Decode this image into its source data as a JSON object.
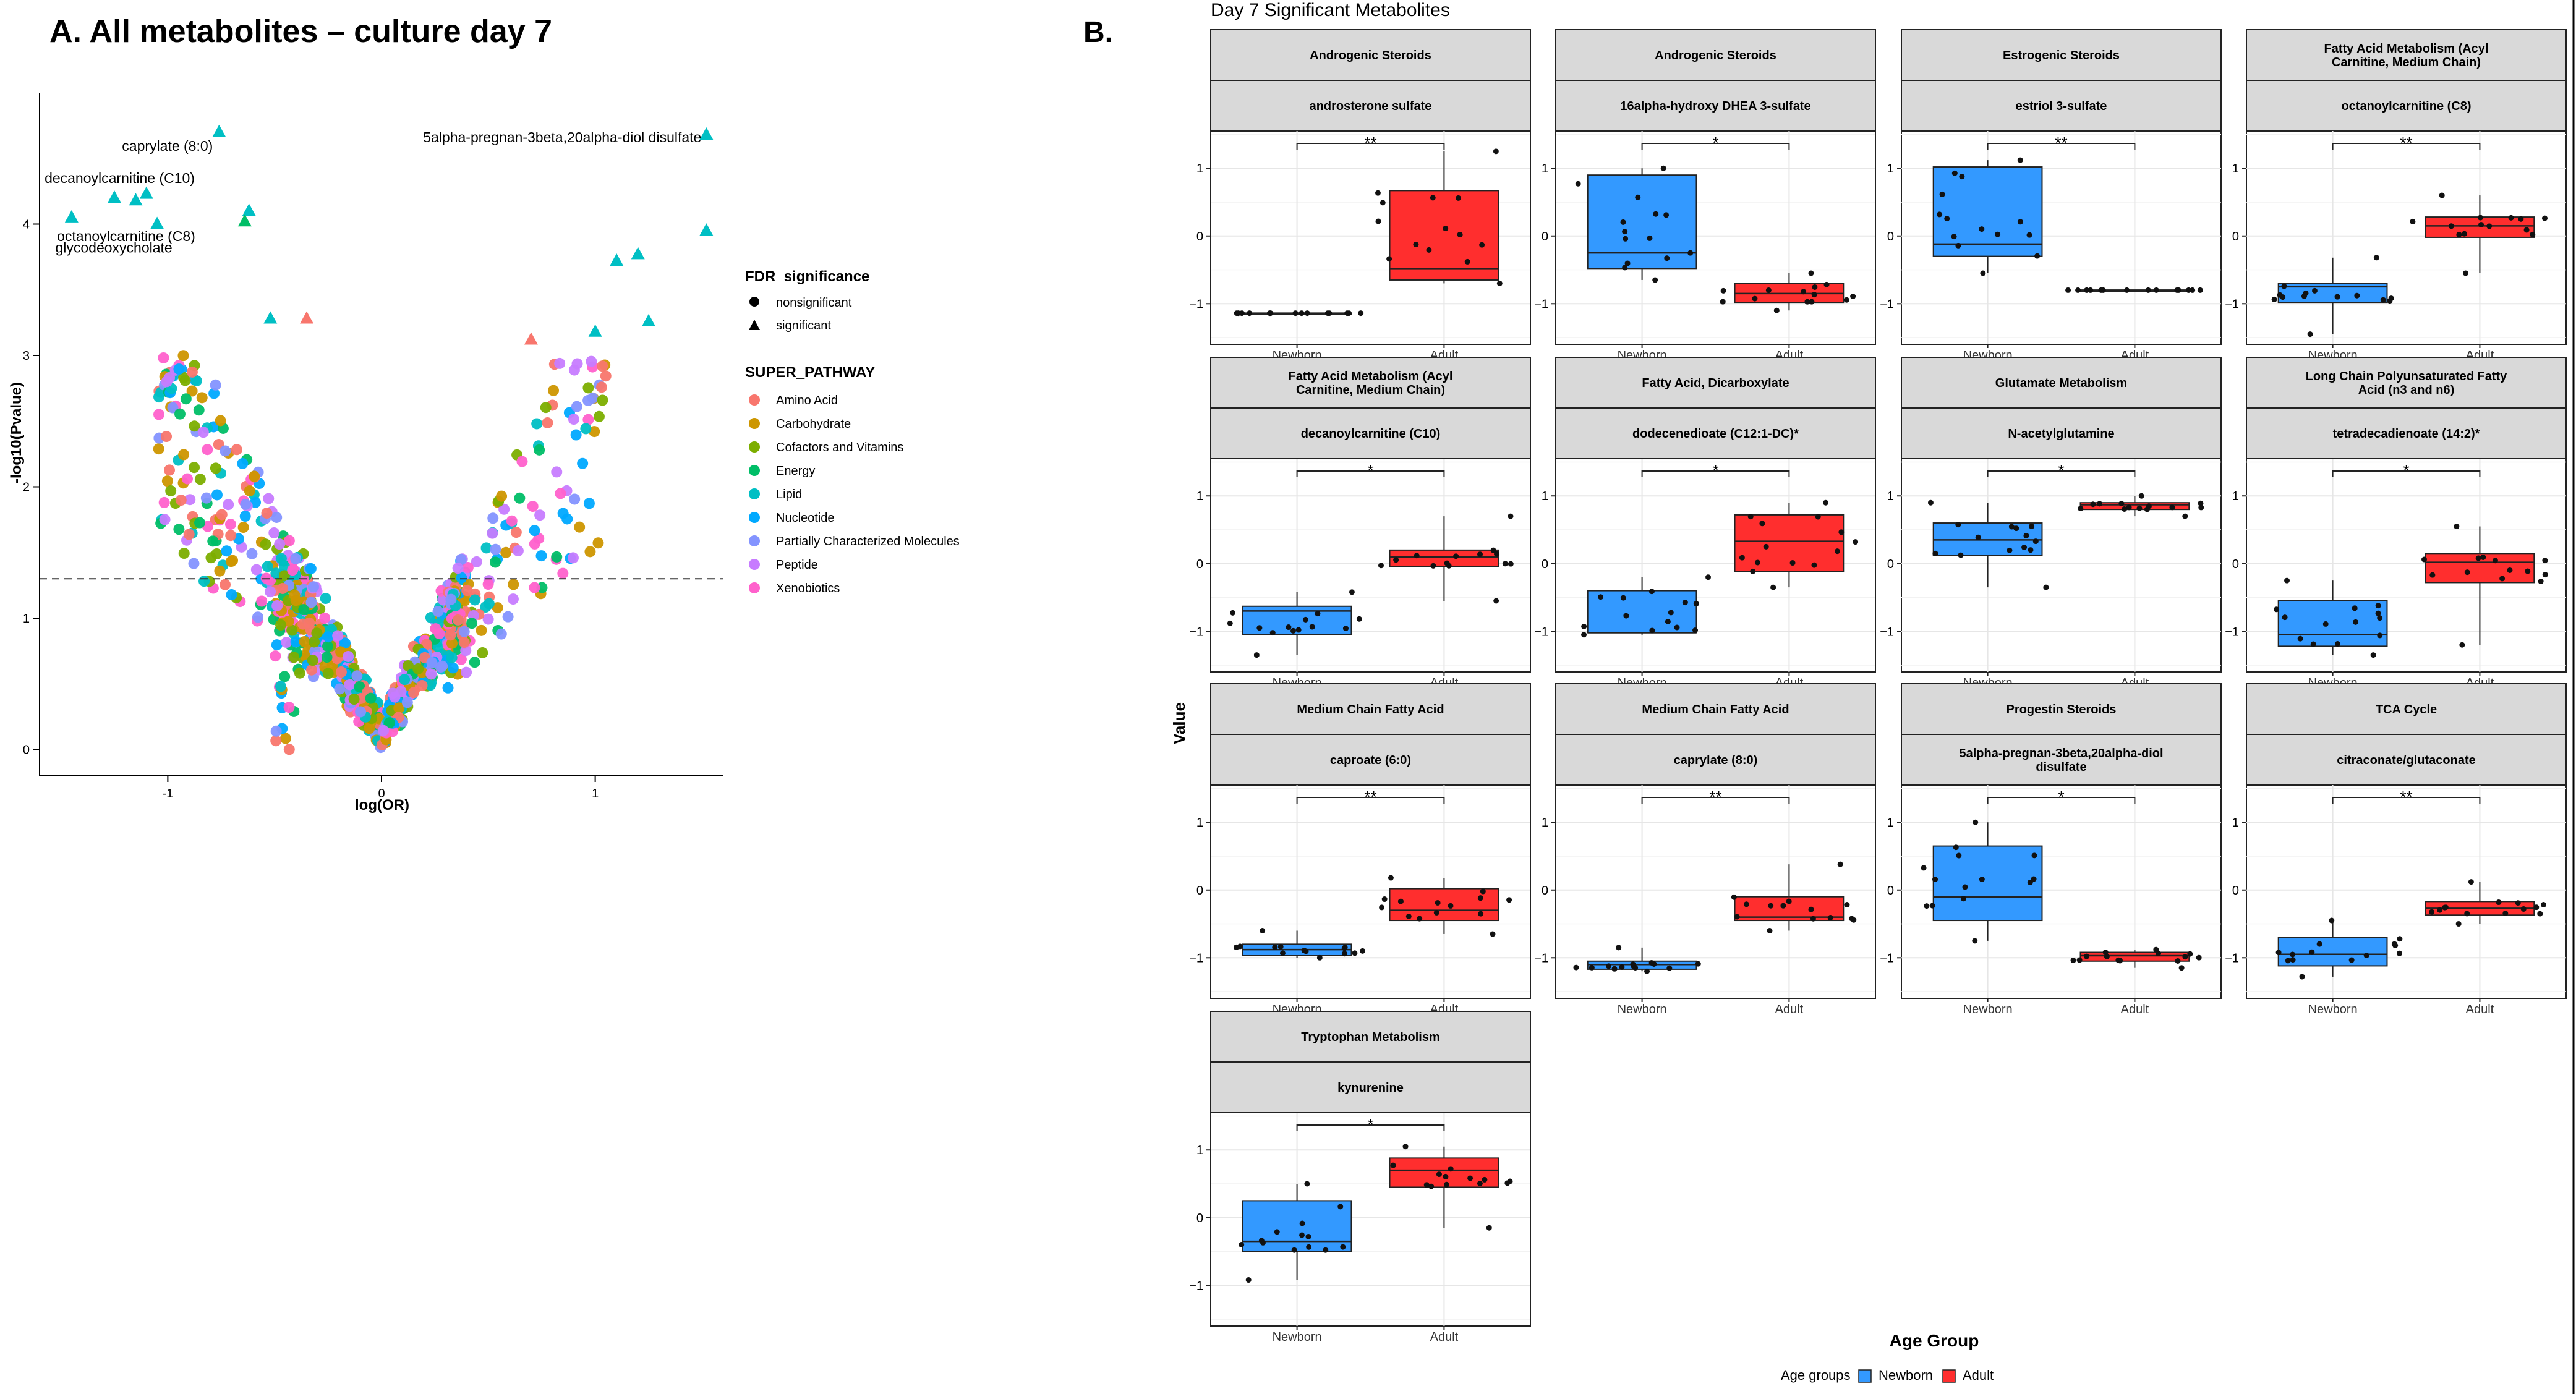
{
  "figure": {
    "panel_a_label": "A. All metabolites – culture day 7",
    "panel_b_label": "B.",
    "panel_b_title": "Day 7 Significant Metabolites"
  },
  "legend_a": {
    "fdr_title": "FDR_significance",
    "fdr_items": [
      "nonsignificant",
      "significant"
    ],
    "pathway_title": "SUPER_PATHWAY",
    "pathway_items": [
      {
        "name": "Amino Acid",
        "color": "#F8766D"
      },
      {
        "name": "Carbohydrate",
        "color": "#CD9600"
      },
      {
        "name": "Cofactors and Vitamins",
        "color": "#7CAE00"
      },
      {
        "name": "Energy",
        "color": "#00BE67"
      },
      {
        "name": "Lipid",
        "color": "#00BFC4"
      },
      {
        "name": "Nucleotide",
        "color": "#00A9FF"
      },
      {
        "name": "Partially Characterized Molecules",
        "color": "#8494FF"
      },
      {
        "name": "Peptide",
        "color": "#C77CFF"
      },
      {
        "name": "Xenobiotics",
        "color": "#FF61CC"
      }
    ]
  },
  "legend_b": {
    "title": "Age groups",
    "items": [
      {
        "name": "Newborn",
        "color": "#3399FF"
      },
      {
        "name": "Adult",
        "color": "#FF2E2E"
      }
    ],
    "xlabel": "Age Group",
    "ylabel": "Value"
  },
  "chart_data": [
    {
      "type": "scatter",
      "title": "A. All metabolites – culture day 7",
      "xlabel": "log(OR)",
      "ylabel": "-log10(Pvalue)",
      "xlim": [
        -1.6,
        1.6
      ],
      "ylim": [
        -0.2,
        5.0
      ],
      "xticks": [
        -1,
        0,
        1
      ],
      "yticks": [
        0,
        1,
        2,
        3,
        4
      ],
      "threshold_y": 1.3,
      "significant_points": [
        {
          "x": -0.76,
          "y": 4.7,
          "pathway": "Lipid",
          "label": "caprylate (8:0)"
        },
        {
          "x": 1.52,
          "y": 4.68,
          "pathway": "Lipid",
          "label": "5alpha-pregnan-3beta,20alpha-diol disulfate"
        },
        {
          "x": -1.25,
          "y": 4.2,
          "pathway": "Lipid",
          "label": "decanoylcarnitine (C10)"
        },
        {
          "x": -1.45,
          "y": 4.05,
          "pathway": "Lipid",
          "label": "octanoylcarnitine (C8)"
        },
        {
          "x": -1.05,
          "y": 4.0,
          "pathway": "Lipid",
          "label": "glycodeoxycholate"
        },
        {
          "x": -1.15,
          "y": 4.18,
          "pathway": "Lipid",
          "label": ""
        },
        {
          "x": -1.1,
          "y": 4.23,
          "pathway": "Lipid",
          "label": ""
        },
        {
          "x": -0.62,
          "y": 4.1,
          "pathway": "Lipid",
          "label": ""
        },
        {
          "x": -0.64,
          "y": 4.02,
          "pathway": "Energy",
          "label": ""
        },
        {
          "x": -0.52,
          "y": 3.28,
          "pathway": "Lipid",
          "label": ""
        },
        {
          "x": -0.35,
          "y": 3.28,
          "pathway": "Amino Acid",
          "label": ""
        },
        {
          "x": 0.7,
          "y": 3.12,
          "pathway": "Amino Acid",
          "label": ""
        },
        {
          "x": 1.0,
          "y": 3.18,
          "pathway": "Lipid",
          "label": ""
        },
        {
          "x": 1.1,
          "y": 3.72,
          "pathway": "Lipid",
          "label": ""
        },
        {
          "x": 1.2,
          "y": 3.77,
          "pathway": "Lipid",
          "label": ""
        },
        {
          "x": 1.52,
          "y": 3.95,
          "pathway": "Lipid",
          "label": ""
        },
        {
          "x": 1.25,
          "y": 3.26,
          "pathway": "Lipid",
          "label": ""
        }
      ]
    },
    {
      "type": "box",
      "title": "Day 7 Significant Metabolites",
      "xlabel": "Age Group",
      "ylabel": "Value",
      "categories": [
        "Newborn",
        "Adult"
      ],
      "ylim": [
        -1.6,
        1.55
      ],
      "yticks": [
        -1,
        0,
        1
      ],
      "panels": [
        {
          "pathway": "Androgenic Steroids",
          "metabolite": "androsterone sulfate",
          "sig": "**",
          "newborn": {
            "q1": -1.14,
            "median": -1.14,
            "q3": -1.14,
            "min": -1.14,
            "max": -1.14
          },
          "adult": {
            "q1": -0.65,
            "median": -0.48,
            "q3": 0.67,
            "min": -0.7,
            "max": 1.25
          }
        },
        {
          "pathway": "Androgenic Steroids",
          "metabolite": "16alpha-hydroxy DHEA 3-sulfate",
          "sig": "*",
          "newborn": {
            "q1": -0.48,
            "median": -0.25,
            "q3": 0.9,
            "min": -0.65,
            "max": 1.0
          },
          "adult": {
            "q1": -0.98,
            "median": -0.85,
            "q3": -0.7,
            "min": -1.1,
            "max": -0.55
          }
        },
        {
          "pathway": "Estrogenic Steroids",
          "metabolite": "estriol 3-sulfate",
          "sig": "**",
          "newborn": {
            "q1": -0.3,
            "median": -0.12,
            "q3": 1.02,
            "min": -0.55,
            "max": 1.12
          },
          "adult": {
            "q1": -0.8,
            "median": -0.8,
            "q3": -0.8,
            "min": -0.8,
            "max": -0.8
          }
        },
        {
          "pathway": "Fatty Acid Metabolism (Acyl Carnitine, Medium Chain)",
          "metabolite": "octanoylcarnitine (C8)",
          "sig": "**",
          "newborn": {
            "q1": -0.98,
            "median": -0.75,
            "q3": -0.7,
            "min": -1.45,
            "max": -0.32
          },
          "adult": {
            "q1": -0.02,
            "median": 0.15,
            "q3": 0.28,
            "min": -0.55,
            "max": 0.6
          }
        },
        {
          "pathway": "Fatty Acid Metabolism (Acyl Carnitine, Medium Chain)",
          "metabolite": "decanoylcarnitine (C10)",
          "sig": "*",
          "newborn": {
            "q1": -1.05,
            "median": -0.7,
            "q3": -0.63,
            "min": -1.35,
            "max": -0.42
          },
          "adult": {
            "q1": -0.04,
            "median": 0.1,
            "q3": 0.2,
            "min": -0.55,
            "max": 0.7
          }
        },
        {
          "pathway": "Fatty Acid, Dicarboxylate",
          "metabolite": "dodecenedioate (C12:1-DC)*",
          "sig": "*",
          "newborn": {
            "q1": -1.02,
            "median": -1.02,
            "q3": -0.4,
            "min": -1.05,
            "max": -0.2
          },
          "adult": {
            "q1": -0.12,
            "median": 0.33,
            "q3": 0.72,
            "min": -0.35,
            "max": 0.9
          }
        },
        {
          "pathway": "Glutamate Metabolism",
          "metabolite": "N-acetylglutamine",
          "sig": "*",
          "newborn": {
            "q1": 0.12,
            "median": 0.35,
            "q3": 0.6,
            "min": -0.35,
            "max": 0.9
          },
          "adult": {
            "q1": 0.8,
            "median": 0.87,
            "q3": 0.9,
            "min": 0.7,
            "max": 1.0
          }
        },
        {
          "pathway": "Long Chain Polyunsaturated Fatty Acid (n3 and n6)",
          "metabolite": "tetradecadienoate (14:2)*",
          "sig": "*",
          "newborn": {
            "q1": -1.22,
            "median": -1.05,
            "q3": -0.55,
            "min": -1.35,
            "max": -0.25
          },
          "adult": {
            "q1": -0.28,
            "median": 0.02,
            "q3": 0.15,
            "min": -1.2,
            "max": 0.55
          }
        },
        {
          "pathway": "Medium Chain Fatty Acid",
          "metabolite": "caproate (6:0)",
          "sig": "**",
          "newborn": {
            "q1": -0.97,
            "median": -0.88,
            "q3": -0.8,
            "min": -1.0,
            "max": -0.6
          },
          "adult": {
            "q1": -0.45,
            "median": -0.3,
            "q3": 0.02,
            "min": -0.65,
            "max": 0.18
          }
        },
        {
          "pathway": "Medium Chain Fatty Acid",
          "metabolite": "caprylate (8:0)",
          "sig": "**",
          "newborn": {
            "q1": -1.17,
            "median": -1.1,
            "q3": -1.05,
            "min": -1.2,
            "max": -0.85
          },
          "adult": {
            "q1": -0.45,
            "median": -0.4,
            "q3": -0.1,
            "min": -0.6,
            "max": 0.38
          }
        },
        {
          "pathway": "Progestin Steroids",
          "metabolite": "5alpha-pregnan-3beta,20alpha-diol disulfate",
          "sig": "*",
          "newborn": {
            "q1": -0.45,
            "median": -0.1,
            "q3": 0.65,
            "min": -0.75,
            "max": 1.0
          },
          "adult": {
            "q1": -1.05,
            "median": -0.97,
            "q3": -0.92,
            "min": -1.15,
            "max": -0.88
          }
        },
        {
          "pathway": "TCA Cycle",
          "metabolite": "citraconate/glutaconate",
          "sig": "**",
          "newborn": {
            "q1": -1.12,
            "median": -0.95,
            "q3": -0.7,
            "min": -1.28,
            "max": -0.45
          },
          "adult": {
            "q1": -0.37,
            "median": -0.27,
            "q3": -0.17,
            "min": -0.5,
            "max": 0.12
          }
        },
        {
          "pathway": "Tryptophan Metabolism",
          "metabolite": "kynurenine",
          "sig": "*",
          "newborn": {
            "q1": -0.5,
            "median": -0.35,
            "q3": 0.25,
            "min": -0.92,
            "max": 0.5
          },
          "adult": {
            "q1": 0.45,
            "median": 0.7,
            "q3": 0.88,
            "min": -0.15,
            "max": 1.05
          }
        }
      ]
    }
  ]
}
